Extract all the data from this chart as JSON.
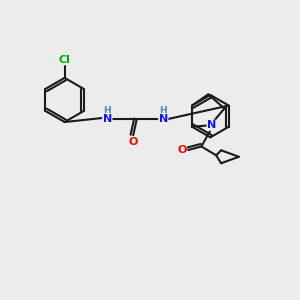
{
  "bg_color": "#ececec",
  "bond_color": "#1a1a1a",
  "N_color": "#1010ff",
  "O_color": "#ff0000",
  "Cl_color": "#00aa00",
  "H_color": "#4488aa",
  "figsize": [
    3.0,
    3.0
  ],
  "dpi": 100,
  "lw": 1.5,
  "fs": 7.5,
  "xlim": [
    0,
    10
  ],
  "ylim": [
    0,
    10
  ]
}
